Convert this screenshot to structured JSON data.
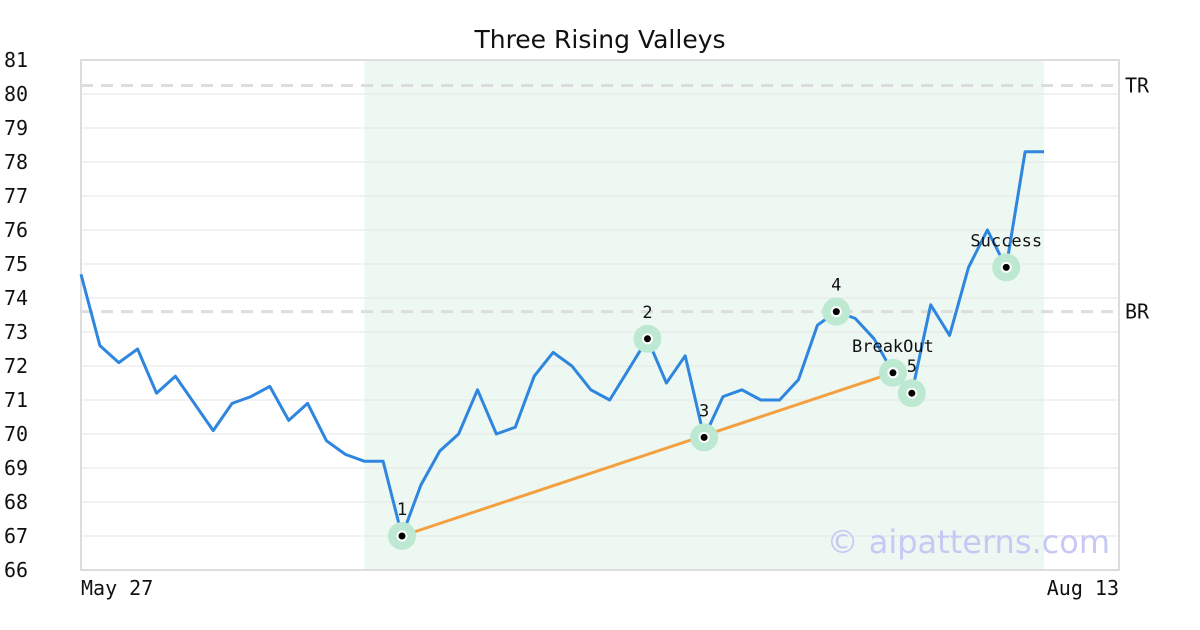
{
  "chart_data": {
    "type": "line",
    "title": "Three Rising Valleys",
    "ylim": [
      66,
      81
    ],
    "yticks": [
      66,
      67,
      68,
      69,
      70,
      71,
      72,
      73,
      74,
      75,
      76,
      77,
      78,
      79,
      80,
      81
    ],
    "x_tick_labels": [
      "May 27",
      "Aug 13"
    ],
    "grid": true,
    "series": [
      {
        "color": "#2e86de",
        "values": [
          74.7,
          72.6,
          72.1,
          72.5,
          71.2,
          71.7,
          70.9,
          70.1,
          70.9,
          71.1,
          71.4,
          70.4,
          70.9,
          69.8,
          69.4,
          69.2,
          69.2,
          67.0,
          68.5,
          69.5,
          70.0,
          71.3,
          70.0,
          70.2,
          71.7,
          72.4,
          72.0,
          71.3,
          71.0,
          71.9,
          72.8,
          71.5,
          72.3,
          69.9,
          71.1,
          71.3,
          71.0,
          71.0,
          71.6,
          73.2,
          73.6,
          73.4,
          72.8,
          71.8,
          71.2,
          73.8,
          72.9,
          74.9,
          76.0,
          74.9,
          78.3,
          78.3
        ]
      }
    ],
    "reference_lines": [
      {
        "label": "TR",
        "value": 80.25
      },
      {
        "label": "BR",
        "value": 73.6
      }
    ],
    "highlight_region": {
      "x_start": 15,
      "x_end": 51,
      "color": "#eef8f2"
    },
    "trendline": {
      "from_index": 17,
      "to_index": 43,
      "color": "#f4a040"
    },
    "annotations": [
      {
        "label": "1",
        "index": 17,
        "value": 67.0
      },
      {
        "label": "2",
        "index": 30,
        "value": 72.8
      },
      {
        "label": "3",
        "index": 33,
        "value": 69.9
      },
      {
        "label": "4",
        "index": 40,
        "value": 73.6
      },
      {
        "label": "5",
        "index": 44,
        "value": 71.2
      },
      {
        "label": "BreakOut",
        "index": 43,
        "value": 71.8
      },
      {
        "label": "Success",
        "index": 49,
        "value": 74.9
      }
    ],
    "watermark": "© aipatterns.com",
    "colors": {
      "line": "#2e86de",
      "trend": "#f4a040",
      "marker_halo": "#bde9d2",
      "refline": "#dddddd",
      "grid": "#e6e6e6",
      "frame": "#dddddd",
      "watermark": "#c8c8f5"
    }
  }
}
